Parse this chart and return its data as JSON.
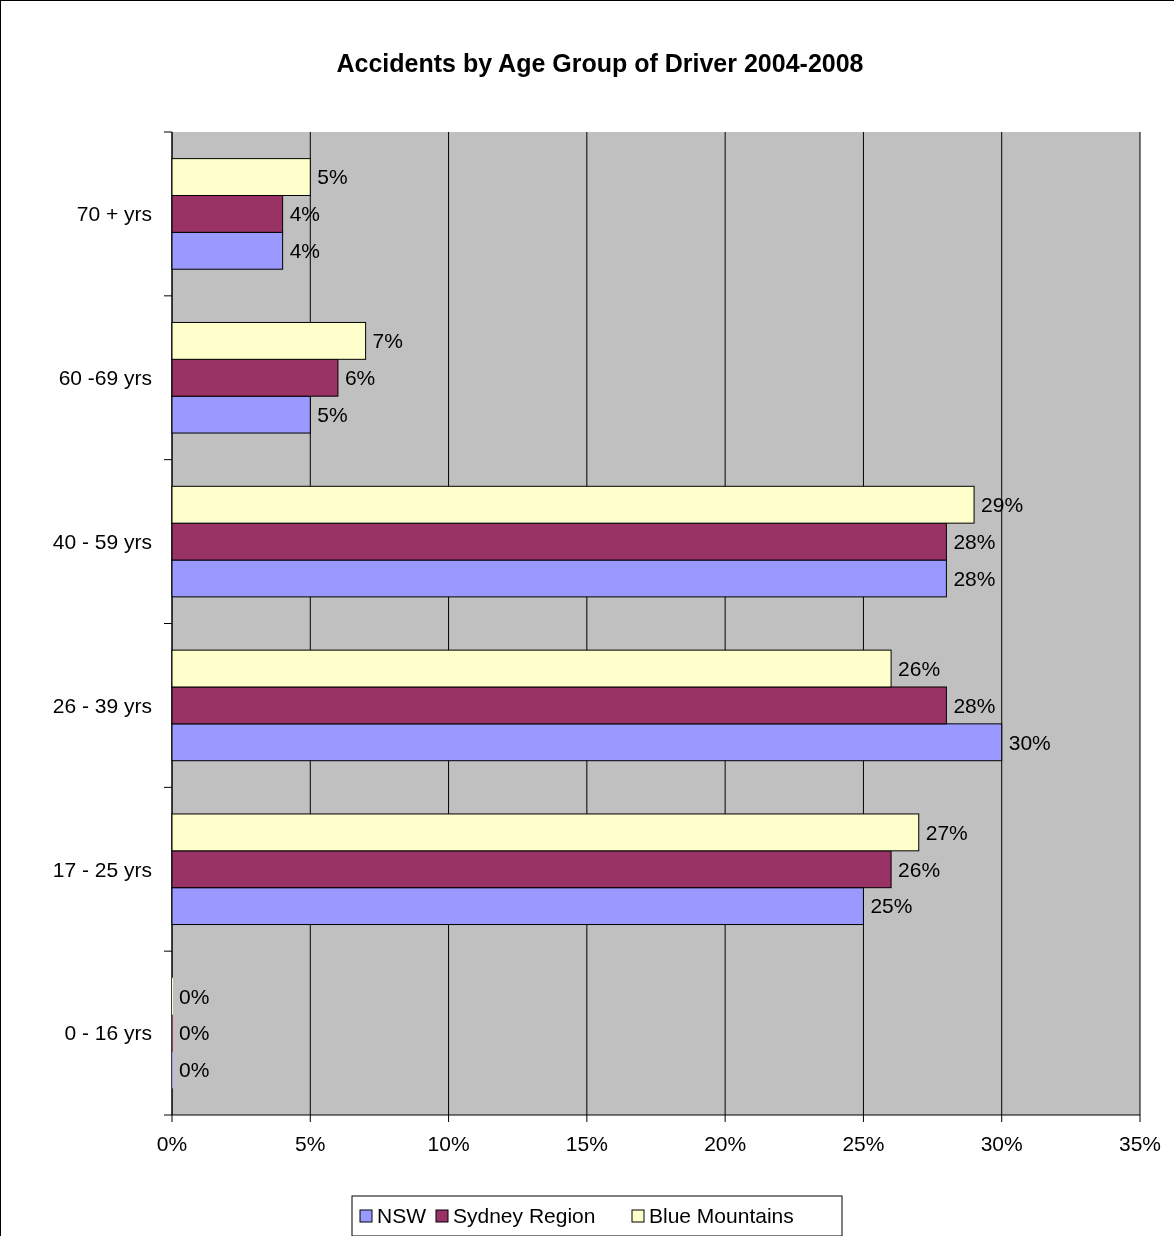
{
  "chart_data": {
    "type": "bar",
    "orientation": "horizontal",
    "title": "Accidents by Age Group of Driver 2004-2008",
    "categories": [
      "70 + yrs",
      "60 -69 yrs",
      "40 - 59 yrs",
      "26 - 39 yrs",
      "17 - 25 yrs",
      "0 - 16 yrs"
    ],
    "series": [
      {
        "name": "NSW",
        "color": "#9999ff",
        "values": [
          4,
          5,
          28,
          30,
          25,
          0
        ],
        "value_labels": [
          "4%",
          "5%",
          "28%",
          "30%",
          "25%",
          "0%"
        ]
      },
      {
        "name": "Sydney Region",
        "color": "#993366",
        "values": [
          4,
          6,
          28,
          28,
          26,
          0
        ],
        "value_labels": [
          "4%",
          "6%",
          "28%",
          "28%",
          "26%",
          "0%"
        ]
      },
      {
        "name": "Blue Mountains",
        "color": "#ffffcc",
        "values": [
          5,
          7,
          29,
          26,
          27,
          0
        ],
        "value_labels": [
          "5%",
          "7%",
          "29%",
          "26%",
          "27%",
          "0%"
        ]
      }
    ],
    "xlim": [
      0,
      35
    ],
    "xticks": [
      {
        "value": 0,
        "label": "0%"
      },
      {
        "value": 5,
        "label": "5%"
      },
      {
        "value": 10,
        "label": "10%"
      },
      {
        "value": 15,
        "label": "15%"
      },
      {
        "value": 20,
        "label": "20%"
      },
      {
        "value": 25,
        "label": "25%"
      },
      {
        "value": 30,
        "label": "30%"
      },
      {
        "value": 35,
        "label": "35%"
      }
    ],
    "grid": "x",
    "legend": "bottom"
  }
}
